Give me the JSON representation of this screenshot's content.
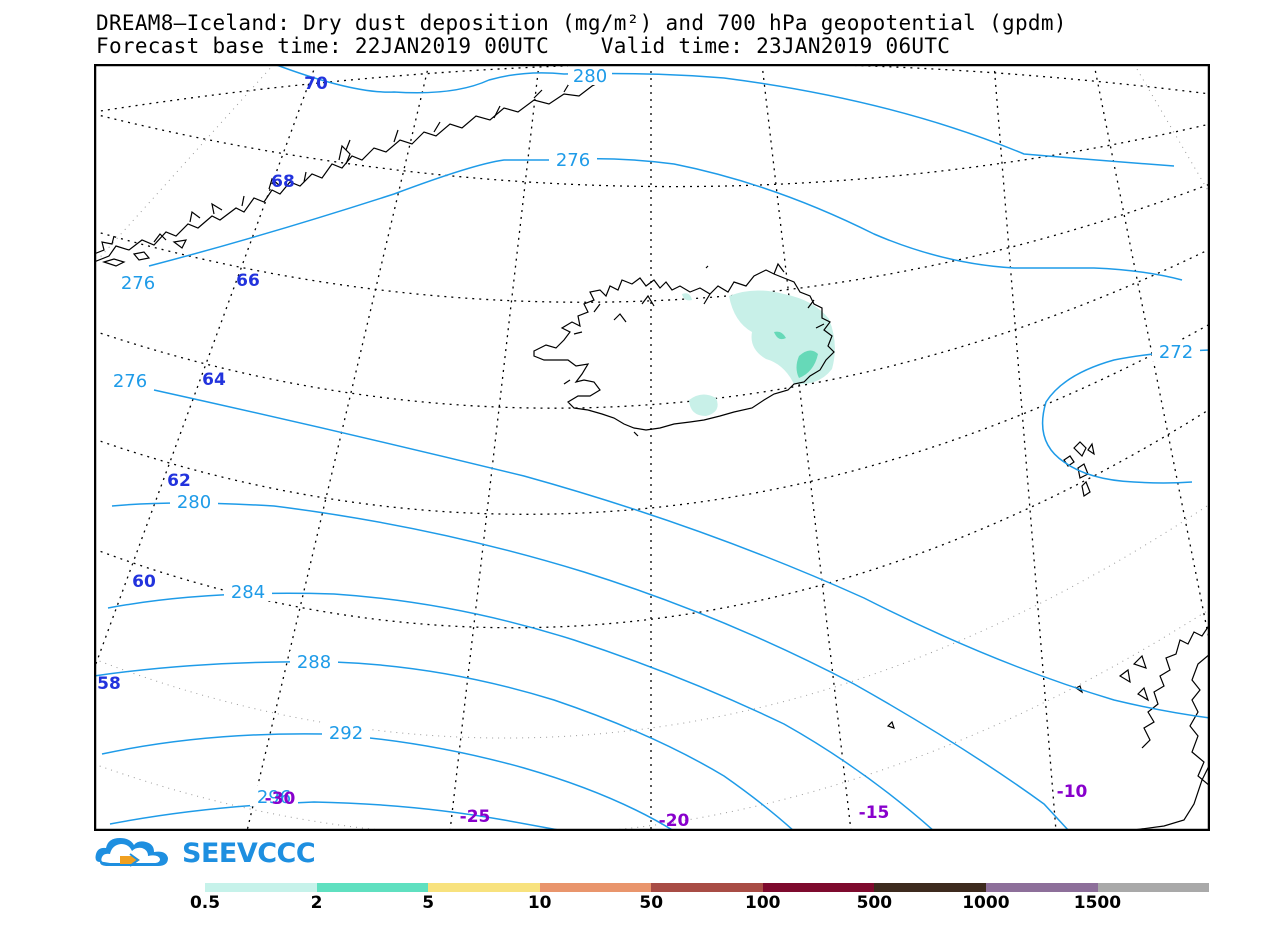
{
  "title_line1": "DREAM8—Iceland: Dry dust deposition (mg/m²) and 700 hPa geopotential (gpdm)",
  "title_line2": "Forecast base time: 22JAN2019 00UTC    Valid time: 23JAN2019 06UTC",
  "logo_text": "SEEVCCC",
  "colors": {
    "contour": "#1e9be8",
    "lat_label": "#2233dd",
    "lon_label": "#8800cc",
    "dust_light": "#c8f0e8",
    "dust_mid": "#66d9b8"
  },
  "contour_labels": [
    "280",
    "276",
    "276",
    "276",
    "272",
    "280",
    "284",
    "288",
    "292",
    "296"
  ],
  "latitude_labels": [
    "70",
    "68",
    "66",
    "64",
    "62",
    "60",
    "58"
  ],
  "longitude_labels": [
    "-30",
    "-25",
    "-20",
    "-15",
    "-10"
  ],
  "legend": {
    "colors": [
      "#c6f2ea",
      "#5fe0c0",
      "#f8e27e",
      "#e9956c",
      "#a84c45",
      "#7e0a2e",
      "#3d2a1e",
      "#8d6f9a",
      "#a9a9a9"
    ],
    "ticks": [
      "0.5",
      "2",
      "5",
      "10",
      "50",
      "100",
      "500",
      "1000",
      "1500"
    ]
  }
}
